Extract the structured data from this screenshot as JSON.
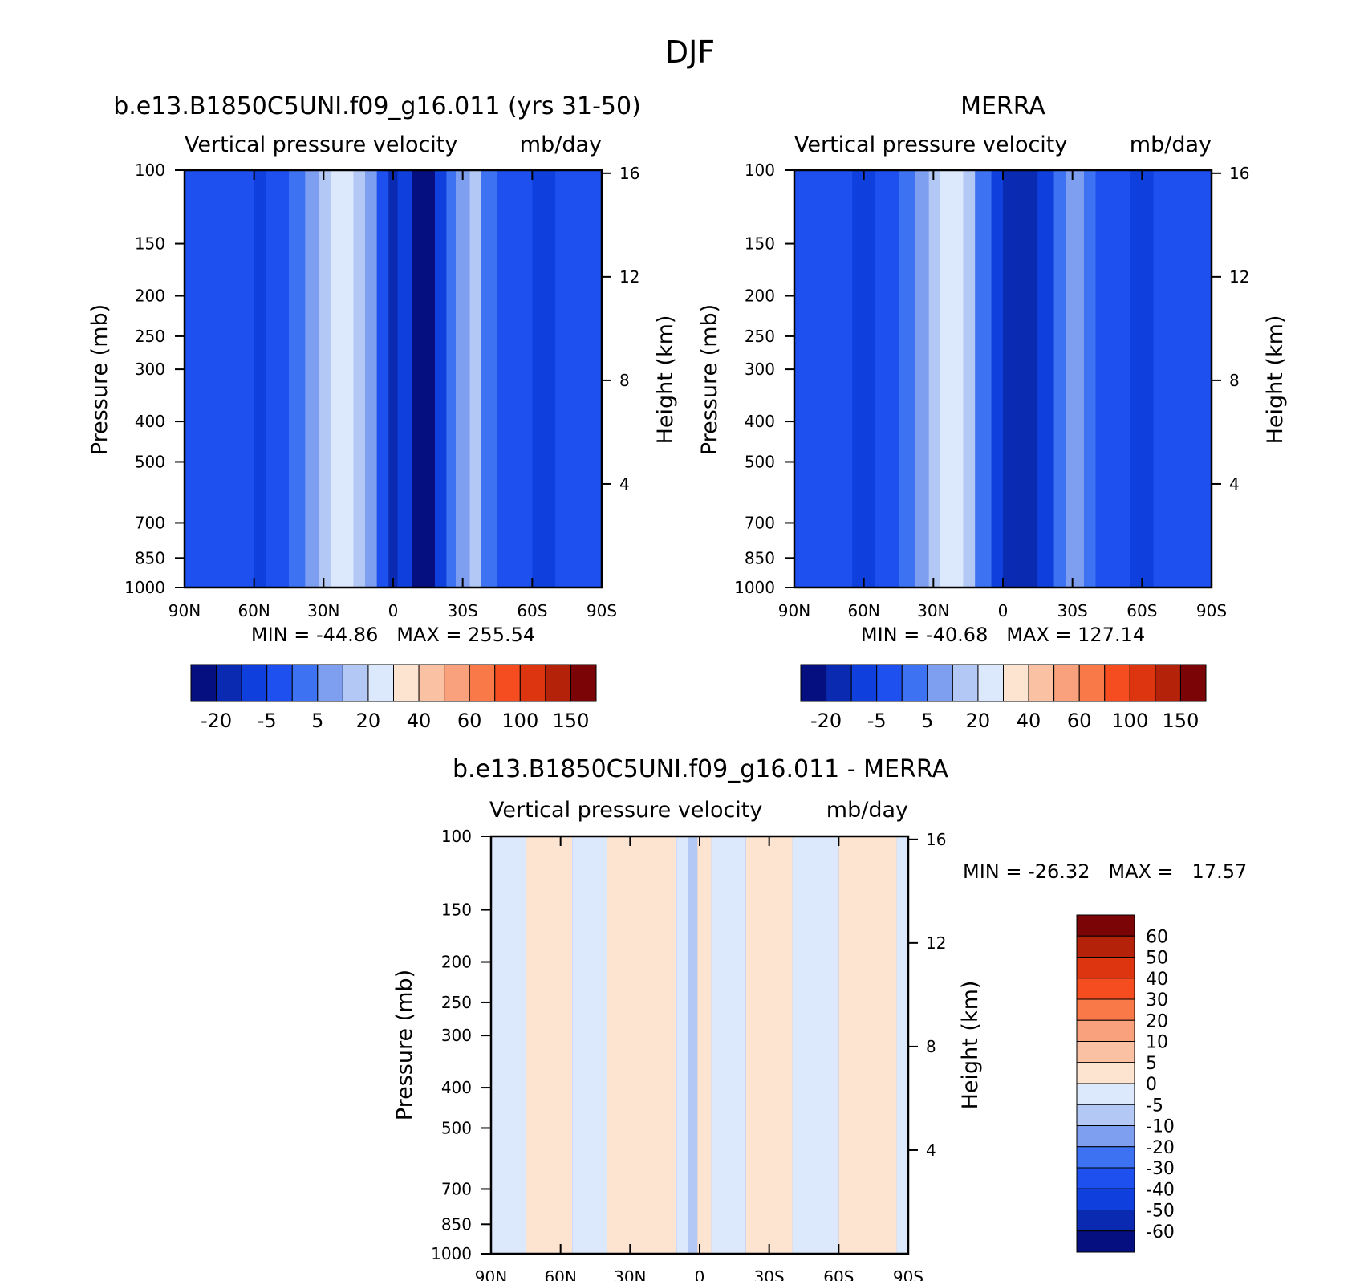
{
  "page_title": "DJF",
  "colors": {
    "abs_palette": [
      "#050f7f",
      "#0a2bb1",
      "#0f3fdc",
      "#1e50f0",
      "#3d72f2",
      "#7e9eef",
      "#b3c8f4",
      "#dce8fb",
      "#fde4d1",
      "#fbc1a3",
      "#f9a07c",
      "#f97a48",
      "#f54d20",
      "#dc3510",
      "#b5220a",
      "#7a0406"
    ],
    "diff_palette": [
      "#050f7f",
      "#0a2bb1",
      "#0f3fdc",
      "#1e50f0",
      "#3d72f2",
      "#7e9eef",
      "#b3c8f4",
      "#dce8fb",
      "#fde4d1",
      "#fbc1a3",
      "#f9a07c",
      "#f97a48",
      "#f54d20",
      "#dc3510",
      "#b5220a",
      "#7a0406"
    ]
  },
  "chart_data": [
    {
      "type": "heatmap",
      "title": "b.e13.B1850C5UNI.f09_g16.011 (yrs 31-50)",
      "subtitle": "Vertical pressure velocity",
      "units": "mb/day",
      "ylabel": "Pressure (mb)",
      "ylabel_right": "Height (km)",
      "x_ticks": [
        "90N",
        "60N",
        "30N",
        "0",
        "30S",
        "60S",
        "90S"
      ],
      "y_ticks": [
        "100",
        "150",
        "200",
        "250",
        "300",
        "400",
        "500",
        "700",
        "850",
        "1000"
      ],
      "y_right_ticks": [
        "16",
        "12",
        "8",
        "4"
      ],
      "stats": "MIN = -44.86   MAX = 255.54",
      "colorbar_labels": [
        "-20",
        "-5",
        "5",
        "20",
        "40",
        "60",
        "100",
        "150"
      ],
      "xlim": [
        90,
        -90
      ],
      "ylim": [
        1000,
        100
      ],
      "y_scale": "log",
      "bands": [
        {
          "lat": [
            90,
            60
          ],
          "level": 3
        },
        {
          "lat": [
            60,
            55
          ],
          "level": 2
        },
        {
          "lat": [
            55,
            45
          ],
          "level": 3
        },
        {
          "lat": [
            45,
            38
          ],
          "level": 4
        },
        {
          "lat": [
            38,
            32
          ],
          "level": 5
        },
        {
          "lat": [
            32,
            27
          ],
          "level": 6
        },
        {
          "lat": [
            27,
            17
          ],
          "level": 7
        },
        {
          "lat": [
            17,
            12
          ],
          "level": 6
        },
        {
          "lat": [
            12,
            7
          ],
          "level": 5
        },
        {
          "lat": [
            7,
            2
          ],
          "level": 3
        },
        {
          "lat": [
            2,
            -2
          ],
          "level": 1
        },
        {
          "lat": [
            -2,
            -8
          ],
          "level": 2
        },
        {
          "lat": [
            -8,
            -18
          ],
          "level": 0
        },
        {
          "lat": [
            -18,
            -23
          ],
          "level": 2
        },
        {
          "lat": [
            -23,
            -27
          ],
          "level": 4
        },
        {
          "lat": [
            -27,
            -33
          ],
          "level": 5
        },
        {
          "lat": [
            -33,
            -38
          ],
          "level": 6
        },
        {
          "lat": [
            -38,
            -45
          ],
          "level": 4
        },
        {
          "lat": [
            -45,
            -60
          ],
          "level": 3
        },
        {
          "lat": [
            -60,
            -70
          ],
          "level": 2
        },
        {
          "lat": [
            -70,
            -90
          ],
          "level": 3
        }
      ]
    },
    {
      "type": "heatmap",
      "title": "MERRA",
      "subtitle": "Vertical pressure velocity",
      "units": "mb/day",
      "ylabel": "Pressure (mb)",
      "ylabel_right": "Height (km)",
      "x_ticks": [
        "90N",
        "60N",
        "30N",
        "0",
        "30S",
        "60S",
        "90S"
      ],
      "y_ticks": [
        "100",
        "150",
        "200",
        "250",
        "300",
        "400",
        "500",
        "700",
        "850",
        "1000"
      ],
      "y_right_ticks": [
        "16",
        "12",
        "8",
        "4"
      ],
      "stats": "MIN = -40.68   MAX = 127.14",
      "colorbar_labels": [
        "-20",
        "-5",
        "5",
        "20",
        "40",
        "60",
        "100",
        "150"
      ],
      "xlim": [
        90,
        -90
      ],
      "ylim": [
        1000,
        100
      ],
      "y_scale": "log",
      "bands": [
        {
          "lat": [
            90,
            65
          ],
          "level": 3
        },
        {
          "lat": [
            65,
            55
          ],
          "level": 2
        },
        {
          "lat": [
            55,
            45
          ],
          "level": 3
        },
        {
          "lat": [
            45,
            38
          ],
          "level": 4
        },
        {
          "lat": [
            38,
            32
          ],
          "level": 5
        },
        {
          "lat": [
            32,
            27
          ],
          "level": 6
        },
        {
          "lat": [
            27,
            17
          ],
          "level": 7
        },
        {
          "lat": [
            17,
            12
          ],
          "level": 6
        },
        {
          "lat": [
            12,
            5
          ],
          "level": 4
        },
        {
          "lat": [
            5,
            0
          ],
          "level": 2
        },
        {
          "lat": [
            0,
            -5
          ],
          "level": 1
        },
        {
          "lat": [
            -5,
            -15
          ],
          "level": 1
        },
        {
          "lat": [
            -15,
            -22
          ],
          "level": 2
        },
        {
          "lat": [
            -22,
            -27
          ],
          "level": 4
        },
        {
          "lat": [
            -27,
            -35
          ],
          "level": 5
        },
        {
          "lat": [
            -35,
            -40
          ],
          "level": 4
        },
        {
          "lat": [
            -40,
            -55
          ],
          "level": 3
        },
        {
          "lat": [
            -55,
            -65
          ],
          "level": 2
        },
        {
          "lat": [
            -65,
            -90
          ],
          "level": 3
        }
      ]
    },
    {
      "type": "heatmap",
      "title": "b.e13.B1850C5UNI.f09_g16.011 - MERRA",
      "subtitle": "Vertical pressure velocity",
      "units": "mb/day",
      "ylabel": "Pressure (mb)",
      "ylabel_right": "Height (km)",
      "x_ticks": [
        "90N",
        "60N",
        "30N",
        "0",
        "30S",
        "60S",
        "90S"
      ],
      "y_ticks": [
        "100",
        "150",
        "200",
        "250",
        "300",
        "400",
        "500",
        "700",
        "850",
        "1000"
      ],
      "y_right_ticks": [
        "16",
        "12",
        "8",
        "4"
      ],
      "stats": "MIN = -26.32   MAX =   17.57",
      "colorbar_labels": [
        "60",
        "50",
        "40",
        "30",
        "20",
        "10",
        "5",
        "0",
        "-5",
        "-10",
        "-20",
        "-30",
        "-40",
        "-50",
        "-60"
      ],
      "xlim": [
        90,
        -90
      ],
      "ylim": [
        1000,
        100
      ],
      "y_scale": "log",
      "bands": [
        {
          "lat": [
            90,
            75
          ],
          "level": 7
        },
        {
          "lat": [
            75,
            55
          ],
          "level": 8
        },
        {
          "lat": [
            55,
            40
          ],
          "level": 7
        },
        {
          "lat": [
            40,
            10
          ],
          "level": 8
        },
        {
          "lat": [
            10,
            5
          ],
          "level": 7
        },
        {
          "lat": [
            5,
            1
          ],
          "level": 6
        },
        {
          "lat": [
            1,
            -5
          ],
          "level": 8
        },
        {
          "lat": [
            -5,
            -20
          ],
          "level": 7
        },
        {
          "lat": [
            -20,
            -40
          ],
          "level": 8
        },
        {
          "lat": [
            -40,
            -60
          ],
          "level": 7
        },
        {
          "lat": [
            -60,
            -85
          ],
          "level": 8
        },
        {
          "lat": [
            -85,
            -90
          ],
          "level": 7
        }
      ]
    }
  ]
}
